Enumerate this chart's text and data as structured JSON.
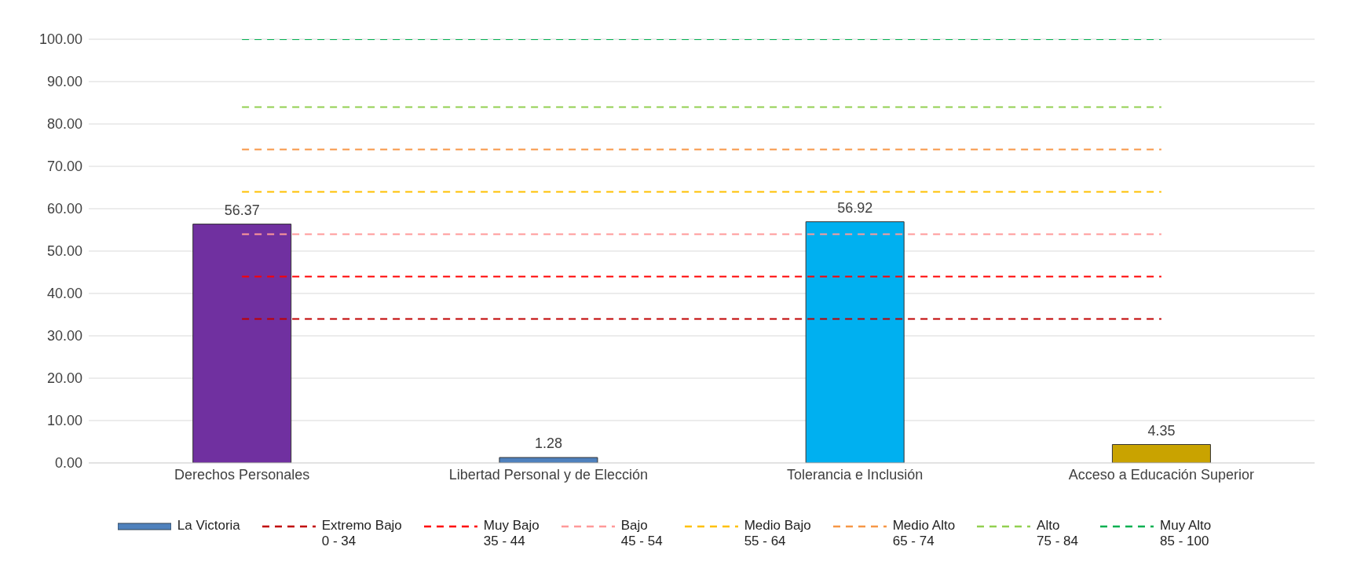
{
  "chart_data": {
    "type": "bar",
    "categories": [
      "Derechos Personales",
      "Libertad Personal y de Elección",
      "Tolerancia e Inclusión",
      "Acceso a Educación Superior"
    ],
    "series": [
      {
        "name": "La Victoria",
        "color": "#4f81bd",
        "colors": [
          "#7030a0",
          "#4f81bd",
          "#00b0f0",
          "#c9a300"
        ],
        "values": [
          56.37,
          1.28,
          56.92,
          4.35
        ],
        "value_labels": [
          "56.37",
          "1.28",
          "56.92",
          "4.35"
        ]
      },
      {
        "name": "Extremo Bajo\n0 - 34",
        "type": "line",
        "color": "#c00000",
        "values": [
          34,
          34,
          34,
          34
        ],
        "line_style": "dashed"
      },
      {
        "name": "Muy Bajo\n35 - 44",
        "type": "line",
        "color": "#ff0000",
        "values": [
          44,
          44,
          44,
          44
        ],
        "line_style": "dashed"
      },
      {
        "name": "Bajo\n45 - 54",
        "type": "line",
        "color": "#ff9999",
        "values": [
          54,
          54,
          54,
          54
        ],
        "line_style": "dashed"
      },
      {
        "name": "Medio Bajo\n55 - 64",
        "type": "line",
        "color": "#ffc000",
        "values": [
          64,
          64,
          64,
          64
        ],
        "line_style": "dashed"
      },
      {
        "name": "Medio Alto\n65 - 74",
        "type": "line",
        "color": "#f79646",
        "values": [
          74,
          74,
          74,
          74
        ],
        "line_style": "dashed"
      },
      {
        "name": "Alto\n75 - 84",
        "type": "line",
        "color": "#92d050",
        "values": [
          84,
          84,
          84,
          84
        ],
        "line_style": "dashed"
      },
      {
        "name": "Muy Alto\n85 - 100",
        "type": "line",
        "color": "#00b050",
        "values": [
          100,
          100,
          100,
          100
        ],
        "line_style": "dashed"
      }
    ],
    "ylim": [
      0,
      100
    ],
    "yticks": [
      {
        "value": 0,
        "label": "0.00"
      },
      {
        "value": 10,
        "label": "10.00"
      },
      {
        "value": 20,
        "label": "20.00"
      },
      {
        "value": 30,
        "label": "30.00"
      },
      {
        "value": 40,
        "label": "40.00"
      },
      {
        "value": 50,
        "label": "50.00"
      },
      {
        "value": 60,
        "label": "60.00"
      },
      {
        "value": 70,
        "label": "70.00"
      },
      {
        "value": 80,
        "label": "80.00"
      },
      {
        "value": 90,
        "label": "90.00"
      },
      {
        "value": 100,
        "label": "100.00"
      }
    ],
    "grid": "y",
    "legend": "bottom",
    "marker": "none"
  }
}
